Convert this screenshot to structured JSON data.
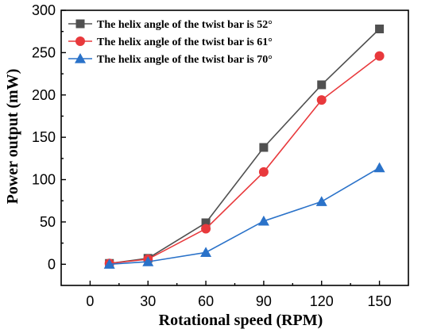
{
  "chart_data": {
    "type": "line",
    "xlabel": "Rotational speed (RPM)",
    "ylabel": "Power output (mW)",
    "xlim": [
      -15,
      165
    ],
    "ylim": [
      -25,
      300
    ],
    "xticks": [
      0,
      30,
      60,
      90,
      120,
      150
    ],
    "yticks": [
      0,
      50,
      100,
      150,
      200,
      250,
      300
    ],
    "grid": false,
    "legend_position": "top-left",
    "x": [
      10,
      30,
      60,
      90,
      120,
      150
    ],
    "series": [
      {
        "name": "The helix angle of the twist bar is 52°",
        "color": "#505050",
        "marker": "square",
        "values": [
          1,
          7,
          49,
          138,
          212,
          278
        ]
      },
      {
        "name": "The helix angle of the twist bar is 61°",
        "color": "#e8393c",
        "marker": "circle",
        "values": [
          1,
          6,
          42,
          109,
          194,
          246
        ]
      },
      {
        "name": "The helix angle of the twist bar is 70°",
        "color": "#2a72c9",
        "marker": "triangle",
        "values": [
          0,
          3,
          14,
          51,
          74,
          114
        ]
      }
    ]
  }
}
